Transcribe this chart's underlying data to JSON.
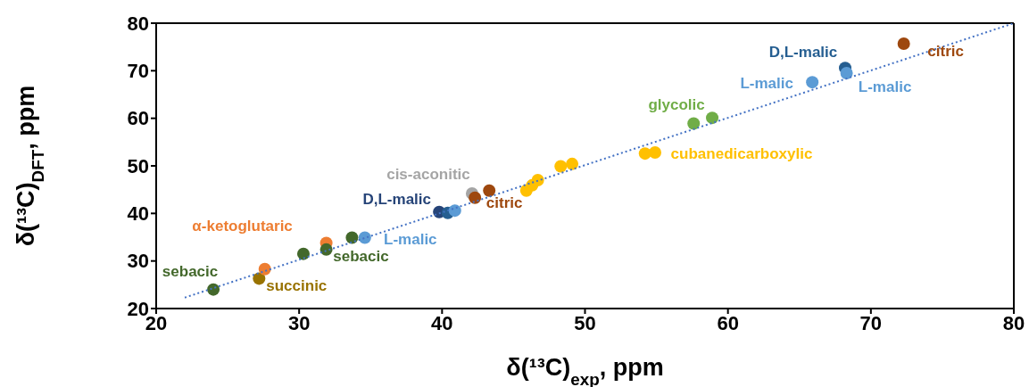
{
  "chart_data": {
    "type": "scatter",
    "xlabel": "δ(¹³C)$_{exp}$, ppm",
    "ylabel": "δ(¹³C)$_{DFT}$, ppm",
    "xlim": [
      20,
      80
    ],
    "xticks": [
      20,
      30,
      40,
      50,
      60,
      70,
      80
    ],
    "ylim": [
      20,
      80
    ],
    "yticks": [
      20,
      30,
      40,
      50,
      60,
      70,
      80
    ],
    "grid": false,
    "legend": false,
    "marker": "circle",
    "series": [
      {
        "name": "sebacic",
        "color": "#43682b",
        "x": [
          24.0
        ],
        "values": [
          24.0
        ]
      },
      {
        "name": "succinic",
        "color": "#997300",
        "x": [
          27.2
        ],
        "values": [
          26.3
        ]
      },
      {
        "name": "α-ketoglutaric",
        "color": "#ed7d31",
        "x": [
          27.6,
          31.9
        ],
        "values": [
          28.3,
          33.8
        ]
      },
      {
        "name": "sebacic",
        "color": "#43682b",
        "x": [
          30.3,
          31.9,
          33.7
        ],
        "values": [
          31.5,
          32.4,
          34.9
        ]
      },
      {
        "name": "L-malic",
        "color": "#5b9bd5",
        "x": [
          34.6
        ],
        "values": [
          34.9
        ]
      },
      {
        "name": "D,L-malic",
        "color": "#264478",
        "colors": [
          "#264478",
          "#255e91"
        ],
        "x": [
          39.8,
          40.4
        ],
        "values": [
          40.3,
          40.1
        ]
      },
      {
        "color": "#5b9bd5",
        "x": [
          40.9
        ],
        "values": [
          40.6
        ]
      },
      {
        "name": "cis-aconitic",
        "color": "#a5a5a5",
        "x": [
          42.1
        ],
        "values": [
          44.2
        ]
      },
      {
        "name": "citric",
        "color": "#9e480e",
        "x": [
          42.3,
          43.3
        ],
        "values": [
          43.3,
          44.8
        ]
      },
      {
        "name": "cubanedicarboxylic",
        "color": "#ffc000",
        "x": [
          45.9,
          46.3,
          46.7,
          48.3,
          49.1,
          54.2,
          54.9
        ],
        "values": [
          44.8,
          45.9,
          47.0,
          49.9,
          50.4,
          52.6,
          52.8
        ]
      },
      {
        "name": "glycolic",
        "color": "#70ad47",
        "x": [
          57.6,
          58.9
        ],
        "values": [
          58.9,
          60.1
        ]
      },
      {
        "name": "L-malic",
        "color": "#5b9bd5",
        "x": [
          65.9
        ],
        "values": [
          67.6
        ]
      },
      {
        "name": "D,L-malic",
        "color": "#255e91",
        "x": [
          68.2
        ],
        "values": [
          70.6
        ]
      },
      {
        "name": "L-malic",
        "color": "#5b9bd5",
        "x": [
          68.3
        ],
        "values": [
          69.5
        ]
      },
      {
        "name": "citric",
        "color": "#9e480e",
        "x": [
          72.3
        ],
        "values": [
          75.7
        ]
      },
      {
        "type": "line",
        "color": "#4472c4",
        "line_style": "dotted",
        "marker": "none",
        "x": [
          22,
          80
        ],
        "values": [
          22.3,
          80
        ]
      }
    ]
  }
}
